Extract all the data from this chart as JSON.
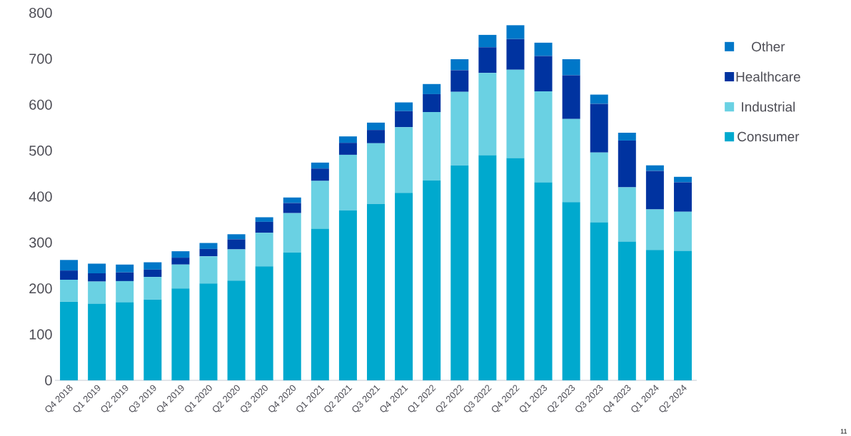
{
  "chart_data": {
    "type": "bar",
    "stacked": true,
    "categories": [
      "Q4 2018",
      "Q1 2019",
      "Q2 2019",
      "Q3 2019",
      "Q4 2019",
      "Q1 2020",
      "Q2 2020",
      "Q3 2020",
      "Q4 2020",
      "Q1 2021",
      "Q2 2021",
      "Q3 2021",
      "Q4 2021",
      "Q1 2022",
      "Q2 2022",
      "Q3 2022",
      "Q4 2022",
      "Q1 2023",
      "Q2 2023",
      "Q3 2023",
      "Q4 2023",
      "Q1 2024",
      "Q2 2024"
    ],
    "series": [
      {
        "name": "Consumer",
        "color": "#00a9ce",
        "values": [
          171,
          167,
          170,
          176,
          200,
          211,
          217,
          248,
          278,
          330,
          370,
          384,
          408,
          435,
          468,
          490,
          484,
          431,
          388,
          344,
          302,
          284,
          282
        ]
      },
      {
        "name": "Industrial",
        "color": "#6ad1e3",
        "values": [
          48,
          48,
          46,
          49,
          52,
          59,
          68,
          73,
          86,
          104,
          121,
          132,
          143,
          149,
          160,
          179,
          192,
          198,
          181,
          152,
          118,
          88,
          85
        ]
      },
      {
        "name": "Healthcare",
        "color": "#0033a0",
        "values": [
          20,
          18,
          19,
          16,
          15,
          16,
          22,
          24,
          22,
          27,
          26,
          29,
          35,
          39,
          47,
          56,
          67,
          77,
          95,
          106,
          102,
          84,
          64
        ]
      },
      {
        "name": "Other",
        "color": "#0077c8",
        "values": [
          23,
          21,
          17,
          16,
          14,
          13,
          11,
          10,
          12,
          13,
          14,
          16,
          19,
          22,
          24,
          27,
          30,
          29,
          35,
          20,
          17,
          12,
          12
        ]
      }
    ],
    "ylim": [
      0,
      800
    ],
    "yticks": [
      0,
      100,
      200,
      300,
      400,
      500,
      600,
      700,
      800
    ],
    "legend": "right",
    "annotations": [
      "11"
    ]
  }
}
